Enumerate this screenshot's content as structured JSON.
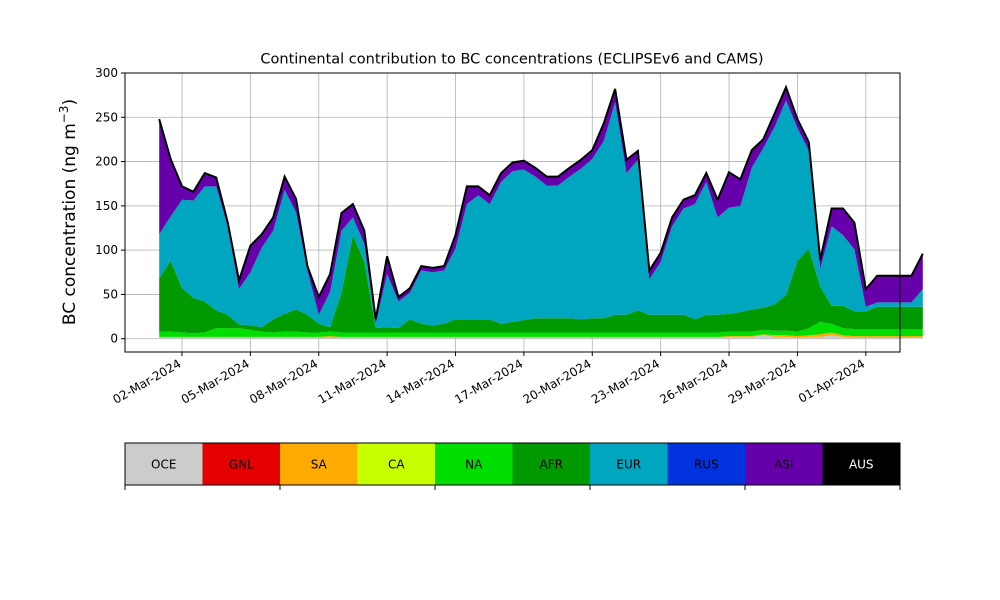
{
  "chart_data": {
    "type": "area",
    "stacked": true,
    "title": "Continental contribution to BC concentrations (ECLIPSEv6 and CAMS)",
    "ylabel_main": "BC concentration (ng m",
    "ylabel_sup": "−3",
    "ylabel_close": ")",
    "xlabel": "",
    "ylim": [
      -15,
      300
    ],
    "yticks": [
      0,
      50,
      100,
      150,
      200,
      250,
      300
    ],
    "x_start": "2024-03-01",
    "x_step_days": 0.5,
    "xtick_labels": [
      "02-Mar-2024",
      "05-Mar-2024",
      "08-Mar-2024",
      "11-Mar-2024",
      "14-Mar-2024",
      "17-Mar-2024",
      "20-Mar-2024",
      "23-Mar-2024",
      "26-Mar-2024",
      "29-Mar-2024",
      "01-Apr-2024"
    ],
    "xtick_days": [
      2,
      5,
      8,
      11,
      14,
      17,
      20,
      23,
      26,
      29,
      32
    ],
    "xlim_days": [
      -0.5,
      33.5
    ],
    "grid": true,
    "legend_placement": "below-chart",
    "series": [
      {
        "name": "OCE",
        "color": "#cccccc",
        "values": [
          1,
          1,
          1,
          1,
          1,
          1,
          1,
          1,
          1,
          1,
          1,
          1,
          1,
          1,
          1,
          1,
          1,
          1,
          1,
          1,
          1,
          1,
          1,
          1,
          1,
          1,
          1,
          1,
          1,
          1,
          1,
          1,
          1,
          1,
          1,
          1,
          1,
          1,
          1,
          1,
          1,
          1,
          1,
          1,
          1,
          1,
          1,
          1,
          1,
          1,
          2,
          2,
          2,
          4,
          2,
          2,
          1,
          2,
          2,
          4,
          2,
          1,
          1,
          1,
          1,
          1,
          1,
          1
        ]
      },
      {
        "name": "GNL",
        "color": "#e50000",
        "values": [
          0,
          0,
          0,
          0,
          0,
          0,
          0,
          0,
          0,
          0,
          0,
          0,
          0,
          0,
          0,
          0,
          0,
          0,
          0,
          0,
          0,
          0,
          0,
          0,
          0,
          0,
          0,
          0,
          0,
          0,
          0,
          0,
          0,
          0,
          0,
          0,
          0,
          0,
          0,
          0,
          0,
          0,
          0,
          0,
          0,
          0,
          0,
          0,
          0,
          0,
          0,
          0,
          0,
          0,
          0,
          0,
          0,
          0,
          0,
          0,
          0,
          0,
          0,
          0,
          0,
          0,
          0,
          0
        ]
      },
      {
        "name": "SA",
        "color": "#ffaa00",
        "values": [
          1,
          1,
          1,
          1,
          1,
          1,
          1,
          1,
          1,
          1,
          1,
          1,
          1,
          1,
          1,
          2,
          1,
          1,
          1,
          1,
          1,
          1,
          1,
          1,
          1,
          1,
          1,
          1,
          1,
          1,
          1,
          1,
          1,
          1,
          1,
          1,
          1,
          1,
          1,
          1,
          1,
          1,
          1,
          1,
          1,
          1,
          1,
          1,
          1,
          1,
          1,
          1,
          1,
          1,
          2,
          2,
          2,
          2,
          3,
          3,
          2,
          2,
          2,
          2,
          2,
          2,
          2,
          2
        ]
      },
      {
        "name": "CA",
        "color": "#c8ff00",
        "values": [
          0,
          0,
          0,
          0,
          0,
          0,
          0,
          0,
          0,
          0,
          0,
          0,
          0,
          0,
          0,
          0,
          0,
          0,
          0,
          0,
          0,
          0,
          0,
          0,
          0,
          0,
          0,
          0,
          0,
          0,
          0,
          0,
          0,
          0,
          0,
          0,
          0,
          0,
          0,
          0,
          0,
          0,
          0,
          0,
          0,
          0,
          0,
          0,
          0,
          0,
          0,
          0,
          0,
          0,
          0,
          0,
          0,
          0,
          0,
          0,
          0,
          0,
          0,
          0,
          0,
          0,
          0,
          0
        ]
      },
      {
        "name": "NA",
        "color": "#00dd00",
        "values": [
          6,
          6,
          5,
          4,
          5,
          10,
          10,
          10,
          8,
          6,
          5,
          6,
          6,
          5,
          5,
          5,
          5,
          5,
          5,
          5,
          5,
          5,
          5,
          5,
          5,
          5,
          5,
          5,
          5,
          5,
          5,
          5,
          5,
          5,
          5,
          5,
          5,
          5,
          5,
          5,
          5,
          5,
          5,
          5,
          5,
          5,
          5,
          5,
          5,
          5,
          5,
          5,
          5,
          5,
          5,
          5,
          5,
          8,
          14,
          10,
          8,
          8,
          8,
          8,
          8,
          8,
          8,
          8
        ]
      },
      {
        "name": "AFR",
        "color": "#009900",
        "values": [
          60,
          80,
          50,
          40,
          35,
          20,
          15,
          4,
          5,
          5,
          15,
          20,
          25,
          20,
          10,
          5,
          45,
          110,
          80,
          5,
          6,
          5,
          15,
          10,
          8,
          10,
          15,
          15,
          15,
          15,
          10,
          12,
          14,
          16,
          16,
          16,
          16,
          15,
          16,
          16,
          20,
          20,
          25,
          20,
          20,
          20,
          20,
          15,
          20,
          20,
          20,
          22,
          25,
          25,
          30,
          40,
          80,
          90,
          40,
          20,
          25,
          20,
          20,
          25,
          25,
          25,
          25,
          25
        ]
      },
      {
        "name": "EUR",
        "color": "#00a6c0",
        "values": [
          50,
          50,
          100,
          110,
          130,
          140,
          100,
          40,
          60,
          90,
          100,
          140,
          110,
          50,
          10,
          40,
          70,
          20,
          20,
          5,
          60,
          30,
          30,
          60,
          60,
          60,
          80,
          130,
          140,
          130,
          160,
          170,
          170,
          160,
          150,
          150,
          160,
          170,
          180,
          200,
          240,
          160,
          170,
          40,
          60,
          100,
          120,
          130,
          150,
          110,
          120,
          120,
          160,
          180,
          200,
          220,
          150,
          110,
          20,
          90,
          80,
          70,
          5,
          5,
          5,
          5,
          5,
          20
        ]
      },
      {
        "name": "RUS",
        "color": "#0033dd",
        "values": [
          0,
          0,
          0,
          0,
          0,
          0,
          0,
          0,
          0,
          0,
          0,
          0,
          0,
          0,
          0,
          0,
          0,
          0,
          0,
          0,
          0,
          0,
          0,
          0,
          0,
          0,
          0,
          0,
          0,
          0,
          0,
          0,
          0,
          0,
          0,
          0,
          0,
          0,
          0,
          0,
          0,
          0,
          0,
          0,
          0,
          0,
          0,
          0,
          0,
          0,
          0,
          0,
          0,
          0,
          0,
          0,
          0,
          0,
          0,
          0,
          0,
          0,
          0,
          0,
          0,
          0,
          0,
          0
        ]
      },
      {
        "name": "ASI",
        "color": "#6600aa",
        "values": [
          130,
          65,
          15,
          10,
          15,
          10,
          5,
          10,
          30,
          15,
          15,
          15,
          15,
          5,
          20,
          20,
          20,
          15,
          15,
          5,
          20,
          5,
          5,
          5,
          5,
          5,
          15,
          20,
          10,
          10,
          10,
          10,
          10,
          10,
          10,
          10,
          10,
          10,
          10,
          20,
          15,
          15,
          10,
          10,
          10,
          10,
          10,
          10,
          10,
          20,
          40,
          30,
          20,
          10,
          15,
          15,
          10,
          10,
          10,
          20,
          30,
          30,
          20,
          30,
          30,
          30,
          30,
          40
        ]
      },
      {
        "name": "AUS",
        "color": "#000000",
        "values": [
          0,
          0,
          0,
          0,
          0,
          0,
          0,
          0,
          0,
          0,
          0,
          0,
          0,
          0,
          0,
          0,
          0,
          0,
          0,
          0,
          0,
          0,
          0,
          0,
          0,
          0,
          0,
          0,
          0,
          0,
          0,
          0,
          0,
          0,
          0,
          0,
          0,
          0,
          0,
          0,
          0,
          0,
          0,
          0,
          0,
          0,
          0,
          0,
          0,
          0,
          0,
          0,
          0,
          0,
          0,
          0,
          0,
          0,
          0,
          0,
          0,
          0,
          0,
          0,
          0,
          0,
          0,
          0
        ]
      }
    ]
  }
}
